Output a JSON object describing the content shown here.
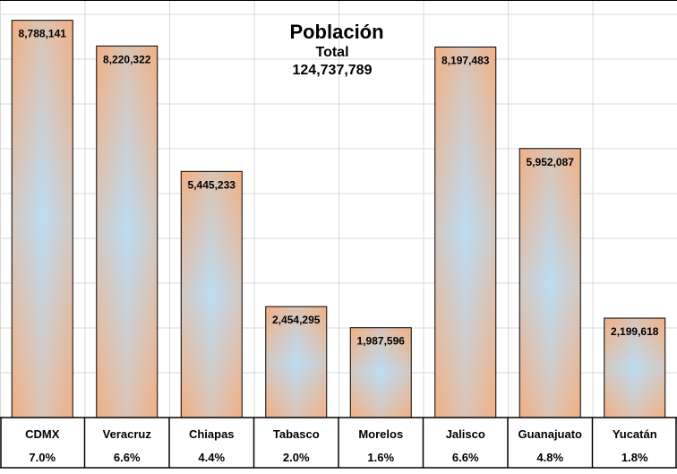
{
  "chart_data": {
    "type": "bar",
    "title": "Población",
    "subtitle": "Total",
    "total": "124,737,789",
    "categories": [
      "CDMX",
      "Veracruz",
      "Chiapas",
      "Tabasco",
      "Morelos",
      "Jalisco",
      "Guanajuato",
      "Yucatán"
    ],
    "values": [
      8788141,
      8220322,
      5445233,
      2454295,
      1987596,
      8197483,
      5952087,
      2199618
    ],
    "value_labels": [
      "8,788,141",
      "8,220,322",
      "5,445,233",
      "2,454,295",
      "1,987,596",
      "8,197,483",
      "5,952,087",
      "2,199,618"
    ],
    "percent_labels": [
      "7.0%",
      "6.6%",
      "4.4%",
      "2.0%",
      "1.6%",
      "6.6%",
      "4.8%",
      "1.8%"
    ],
    "ylim": [
      0,
      9000000
    ],
    "grid": true,
    "colors": {
      "bar_edge": "#f2b084",
      "bar_center": "#bcdcf2",
      "bar_outline": "#000000",
      "grid": "#d9d9d9"
    }
  }
}
